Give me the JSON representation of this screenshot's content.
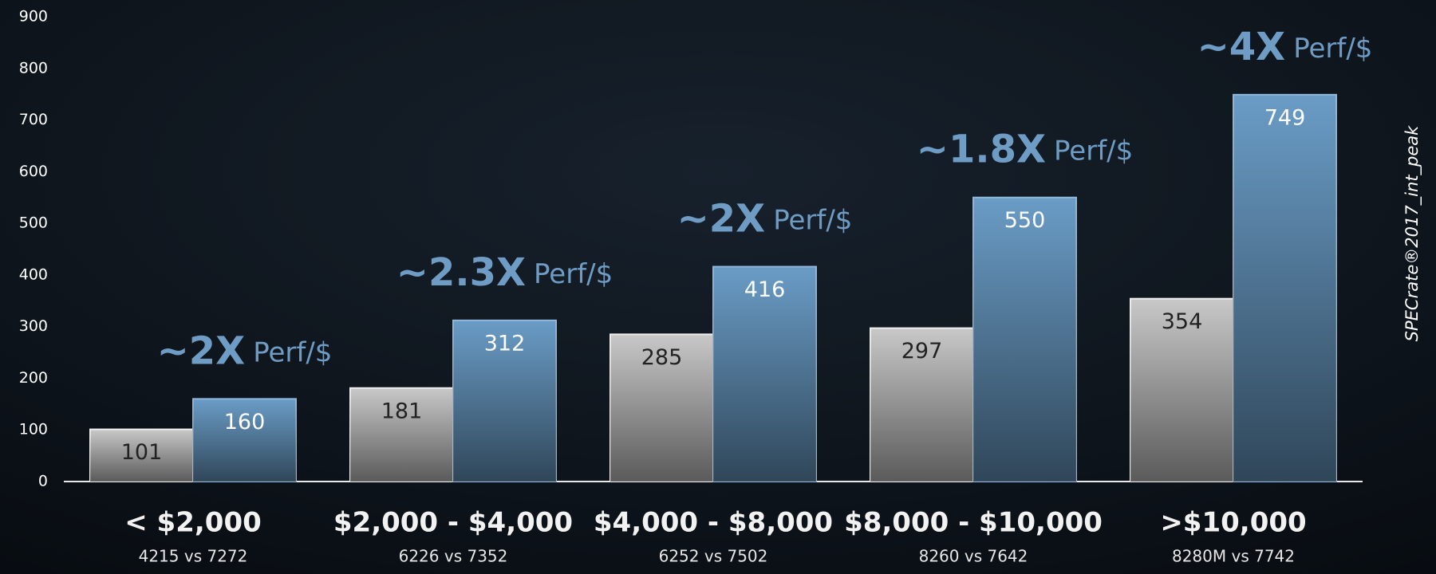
{
  "chart_data": {
    "type": "bar",
    "categories": [
      "< $2,000",
      "$2,000 - $4,000",
      "$4,000 - $8,000",
      "$8,000 - $10,000",
      ">$10,000"
    ],
    "category_notes": [
      "4215 vs 7272",
      "6226 vs 7352",
      "6252 vs 7502",
      "8260 vs 7642",
      "8280M vs 7742"
    ],
    "series": [
      {
        "color": "#c8c8c8",
        "values": [
          101,
          181,
          285,
          297,
          354
        ]
      },
      {
        "color": "#6a9cc6",
        "values": [
          160,
          312,
          416,
          550,
          749
        ]
      }
    ],
    "annotations": [
      {
        "multiplier": "~2X",
        "unit": "Perf/$"
      },
      {
        "multiplier": "~2.3X",
        "unit": "Perf/$"
      },
      {
        "multiplier": "~2X",
        "unit": "Perf/$"
      },
      {
        "multiplier": "~1.8X",
        "unit": "Perf/$"
      },
      {
        "multiplier": "~4X",
        "unit": "Perf/$"
      }
    ],
    "y_label": "SPECrate®2017_int_peak",
    "ylim": [
      0,
      900
    ],
    "yticks": [
      0,
      100,
      200,
      300,
      400,
      500,
      600,
      700,
      800,
      900
    ]
  }
}
